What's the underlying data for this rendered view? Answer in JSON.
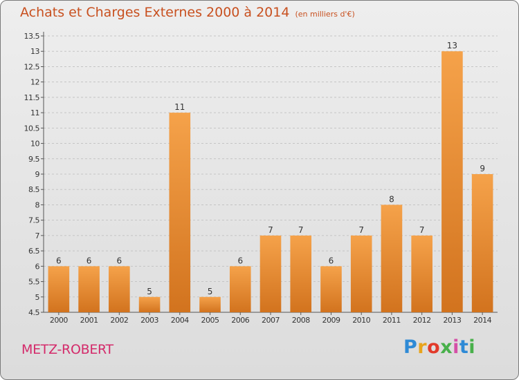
{
  "header": {
    "title": "Achats et Charges Externes 2000 à 2014",
    "subtitle": "(en milliers d'€)"
  },
  "footer": {
    "place": "METZ-ROBERT",
    "brand": "Proxiti",
    "brand_colors": [
      "#2e8ad6",
      "#e8a41c",
      "#e23a2a",
      "#48b04a",
      "#d44fa6",
      "#2e8ad6",
      "#48b04a"
    ]
  },
  "colors": {
    "title": "#c8501f",
    "place": "#d42a6a",
    "bar_light": "#f5a24a",
    "bar_dark": "#d2731e"
  },
  "chart_data": {
    "type": "bar",
    "categories": [
      "2000",
      "2001",
      "2002",
      "2003",
      "2004",
      "2005",
      "2006",
      "2007",
      "2008",
      "2009",
      "2010",
      "2011",
      "2012",
      "2013",
      "2014"
    ],
    "values": [
      6,
      6,
      6,
      5,
      11,
      5,
      6,
      7,
      7,
      6,
      7,
      8,
      7,
      13,
      9
    ],
    "data_labels": [
      "6",
      "6",
      "6",
      "5",
      "11",
      "5",
      "6",
      "7",
      "7",
      "6",
      "7",
      "8",
      "7",
      "13",
      "9"
    ],
    "ylim": [
      4.5,
      13.5
    ],
    "yticks": [
      "4.5",
      "5",
      "5.5",
      "6",
      "6.5",
      "7",
      "7.5",
      "8",
      "8.5",
      "9",
      "9.5",
      "10",
      "10.5",
      "11",
      "11.5",
      "12",
      "12.5",
      "13",
      "13.5"
    ],
    "grid": true,
    "legend": "none"
  }
}
